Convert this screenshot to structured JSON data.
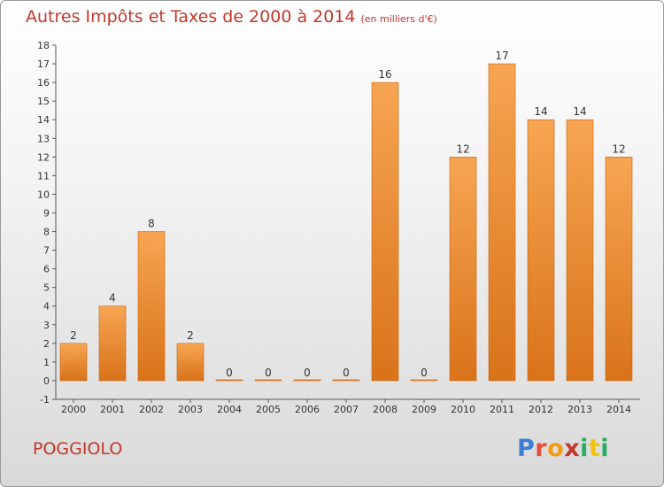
{
  "title": "Autres Impôts et Taxes de 2000 à 2014",
  "unit_note": "(en milliers d'€)",
  "place": "POGGIOLO",
  "logo": {
    "text": "Proxiti",
    "letters": [
      {
        "ch": "P",
        "color": "#3a7fd5"
      },
      {
        "ch": "r",
        "color": "#e74c3c"
      },
      {
        "ch": "o",
        "color": "#f39c12"
      },
      {
        "ch": "x",
        "color": "#c0392b"
      },
      {
        "ch": "i",
        "color": "#27ae60"
      },
      {
        "ch": "t",
        "color": "#f1c40f"
      },
      {
        "ch": "i",
        "color": "#27ae60"
      }
    ]
  },
  "colors": {
    "title": "#c0392b",
    "bar_light": "#f7a552",
    "bar_dark": "#d9731a",
    "bar_stroke": "#c9650e"
  },
  "chart_data": {
    "type": "bar",
    "categories": [
      "2000",
      "2001",
      "2002",
      "2003",
      "2004",
      "2005",
      "2006",
      "2007",
      "2008",
      "2009",
      "2010",
      "2011",
      "2012",
      "2013",
      "2014"
    ],
    "values": [
      2,
      4,
      8,
      2,
      0,
      0,
      0,
      0,
      16,
      0,
      12,
      17,
      14,
      14,
      12
    ],
    "value_labels": [
      "2",
      "4",
      "8",
      "2",
      "0",
      "0",
      "0",
      "0",
      "16",
      "0",
      "12",
      "17",
      "14",
      "14",
      "12"
    ],
    "yticks": [
      "-1",
      "0",
      "1",
      "2",
      "3",
      "4",
      "5",
      "6",
      "7",
      "8",
      "9",
      "10",
      "11",
      "12",
      "13",
      "14",
      "15",
      "16",
      "17",
      "18"
    ],
    "ylim": [
      -1,
      18
    ],
    "grid": false,
    "title": "Autres Impôts et Taxes de 2000 à 2014",
    "xlabel": "",
    "ylabel": ""
  }
}
